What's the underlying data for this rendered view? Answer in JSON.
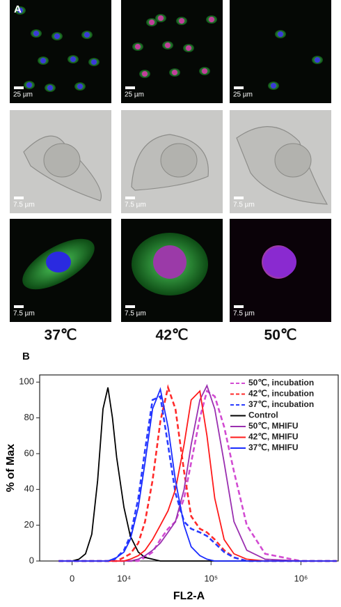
{
  "panel_a": {
    "label": "A",
    "rows": [
      [
        "25 µm",
        "25 µm",
        "25 µm"
      ],
      [
        "7.5 µm",
        "7.5 µm",
        "7.5 µm"
      ],
      [
        "7.5 µm",
        "7.5 µm",
        "7.5 µm"
      ]
    ],
    "columns": [
      "37℃",
      "42℃",
      "50℃"
    ]
  },
  "panel_b_label": "B",
  "chart_data": {
    "type": "line",
    "xscale": "biexponential",
    "xlabel": "FL2-A",
    "ylabel": "% of Max",
    "x": [
      -2000,
      0,
      1000,
      2000,
      3000,
      4000,
      5000,
      6000,
      7000,
      8000,
      10000,
      12000,
      15000,
      18000,
      22000,
      27000,
      33000,
      40000,
      50000,
      60000,
      75000,
      90000,
      110000,
      140000,
      180000,
      250000,
      400000,
      1000000,
      2500000
    ],
    "series": [
      {
        "name": "50℃, incubation",
        "color": "#d24bd2",
        "linestyle": "dashed",
        "values": [
          0,
          0,
          0,
          0,
          0,
          0,
          0,
          0,
          0,
          0,
          0,
          0,
          0,
          2,
          5,
          12,
          18,
          22,
          35,
          55,
          80,
          95,
          92,
          75,
          50,
          20,
          4,
          0,
          0
        ]
      },
      {
        "name": "42℃, incubation",
        "color": "#ff2a2a",
        "linestyle": "dashed",
        "values": [
          0,
          0,
          0,
          0,
          0,
          0,
          0,
          0,
          0,
          0,
          2,
          4,
          10,
          22,
          45,
          78,
          97,
          85,
          50,
          25,
          18,
          16,
          12,
          6,
          2,
          0,
          0,
          0,
          0
        ]
      },
      {
        "name": "37℃, incubation",
        "color": "#2a3cff",
        "linestyle": "dashed",
        "values": [
          0,
          0,
          0,
          0,
          0,
          0,
          0,
          0,
          0,
          2,
          6,
          14,
          35,
          62,
          90,
          92,
          65,
          38,
          22,
          18,
          16,
          14,
          10,
          5,
          2,
          0,
          0,
          0,
          0
        ]
      },
      {
        "name": "Control",
        "color": "#000000",
        "linestyle": "solid",
        "values": [
          0,
          0,
          1,
          4,
          15,
          45,
          85,
          97,
          80,
          58,
          30,
          14,
          5,
          2,
          1,
          0,
          0,
          0,
          0,
          0,
          0,
          0,
          0,
          0,
          0,
          0,
          0,
          0,
          0
        ]
      },
      {
        "name": "50℃, MHIFU",
        "color": "#9a2fb0",
        "linestyle": "solid",
        "values": [
          0,
          0,
          0,
          0,
          0,
          0,
          0,
          0,
          0,
          0,
          0,
          0,
          1,
          3,
          6,
          10,
          16,
          22,
          40,
          65,
          90,
          98,
          85,
          55,
          22,
          6,
          1,
          0,
          0
        ]
      },
      {
        "name": "42℃, MHIFU",
        "color": "#ff1a1a",
        "linestyle": "solid",
        "values": [
          0,
          0,
          0,
          0,
          0,
          0,
          0,
          0,
          0,
          0,
          0,
          1,
          3,
          6,
          12,
          20,
          28,
          40,
          65,
          90,
          95,
          70,
          35,
          12,
          4,
          1,
          0,
          0,
          0
        ]
      },
      {
        "name": "37℃, MHIFU",
        "color": "#1a2cff",
        "linestyle": "solid",
        "values": [
          0,
          0,
          0,
          0,
          0,
          0,
          0,
          0,
          1,
          2,
          5,
          12,
          30,
          55,
          85,
          96,
          75,
          45,
          20,
          8,
          3,
          1,
          0,
          0,
          0,
          0,
          0,
          0,
          0
        ]
      }
    ],
    "xlim": [
      -5300,
      2600000
    ],
    "xticks": [
      0,
      {
        "value": 10000,
        "label": "10⁴"
      },
      {
        "value": 100000,
        "label": "10⁵"
      },
      {
        "value": 1000000,
        "label": "10⁶"
      }
    ],
    "ylim": [
      0,
      104
    ],
    "yticks": [
      0,
      20,
      40,
      60,
      80,
      100
    ],
    "grid": false,
    "legend": "upper right"
  }
}
